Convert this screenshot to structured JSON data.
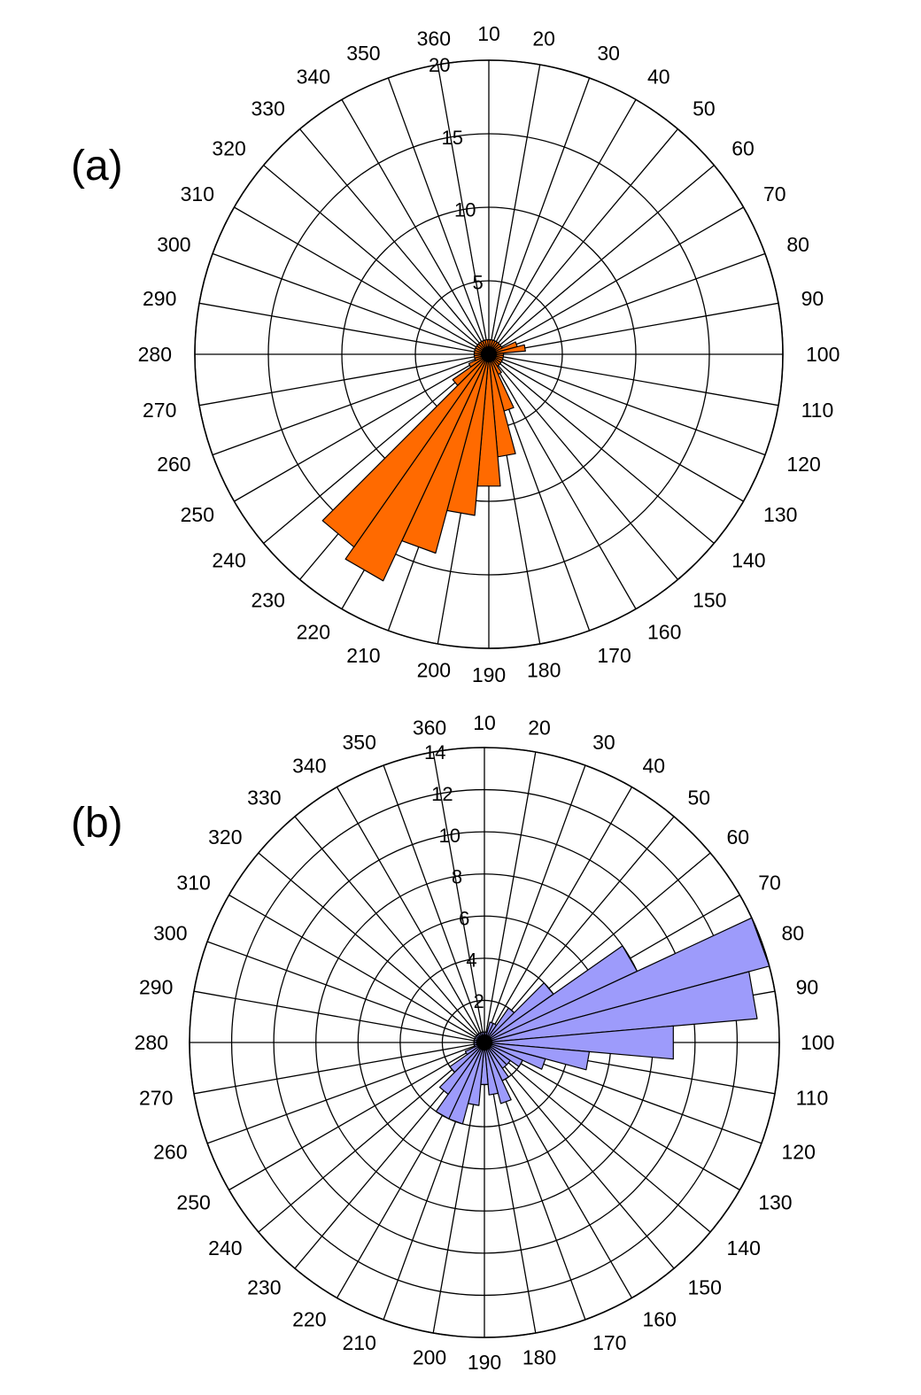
{
  "colors": {
    "background": "#ffffff",
    "grid": "#000000",
    "grid_light": "#999999",
    "panel_a_fill": "#ff6a00",
    "panel_b_fill": "#9d9bfb",
    "petal_stroke": "#000000"
  },
  "chart_data": [
    {
      "type": "polar-area",
      "panel_label": "(a)",
      "direction_labels": [
        "10",
        "20",
        "30",
        "40",
        "50",
        "60",
        "70",
        "80",
        "90",
        "100",
        "110",
        "120",
        "130",
        "140",
        "150",
        "160",
        "170",
        "180",
        "190",
        "200",
        "210",
        "220",
        "230",
        "240",
        "250",
        "260",
        "270",
        "280",
        "290",
        "300",
        "310",
        "320",
        "330",
        "340",
        "350",
        "360"
      ],
      "r_ticks": [
        "5",
        "10",
        "15",
        "20"
      ],
      "r_max": 20,
      "grid": true,
      "series": [
        {
          "fill": "#ff6a00",
          "directions": [
            10,
            20,
            30,
            40,
            50,
            60,
            70,
            80,
            90,
            100,
            110,
            120,
            130,
            140,
            150,
            160,
            170,
            180,
            190,
            200,
            210,
            220,
            230,
            240,
            250,
            260,
            270,
            280,
            290,
            300,
            310,
            320,
            330,
            340,
            350,
            360
          ],
          "values": [
            1,
            1,
            1,
            1,
            1,
            1,
            1,
            2,
            2.5,
            1,
            1,
            1,
            1,
            1,
            1,
            1.5,
            4,
            7,
            9,
            11,
            14,
            17,
            16,
            3,
            1.5,
            1,
            1,
            1,
            1,
            1,
            1,
            1,
            1,
            1,
            1,
            1
          ]
        }
      ]
    },
    {
      "type": "polar-area",
      "panel_label": "(b)",
      "direction_labels": [
        "10",
        "20",
        "30",
        "40",
        "50",
        "60",
        "70",
        "80",
        "90",
        "100",
        "110",
        "120",
        "130",
        "140",
        "150",
        "160",
        "170",
        "180",
        "190",
        "200",
        "210",
        "220",
        "230",
        "240",
        "250",
        "260",
        "270",
        "280",
        "290",
        "300",
        "310",
        "320",
        "330",
        "340",
        "350",
        "360"
      ],
      "r_ticks": [
        "2",
        "4",
        "6",
        "8",
        "10",
        "12",
        "14"
      ],
      "r_max": 14,
      "grid": true,
      "series": [
        {
          "fill": "#9d9bfb",
          "directions": [
            10,
            20,
            30,
            40,
            50,
            60,
            70,
            80,
            90,
            100,
            110,
            120,
            130,
            140,
            150,
            160,
            170,
            180,
            190,
            200,
            210,
            220,
            230,
            240,
            250,
            260,
            270,
            280,
            290,
            300,
            310,
            320,
            330,
            340,
            350,
            360
          ],
          "values": [
            0.5,
            0.5,
            1,
            1,
            2,
            4,
            8,
            14,
            13,
            9,
            5,
            3,
            2,
            1.5,
            1.5,
            2,
            3,
            2.5,
            2,
            3,
            4,
            4,
            3,
            2,
            1,
            0.5,
            0.5,
            0.5,
            0.5,
            0.5,
            0.5,
            0.5,
            0.5,
            0.5,
            0.5,
            0.5
          ]
        }
      ]
    }
  ]
}
